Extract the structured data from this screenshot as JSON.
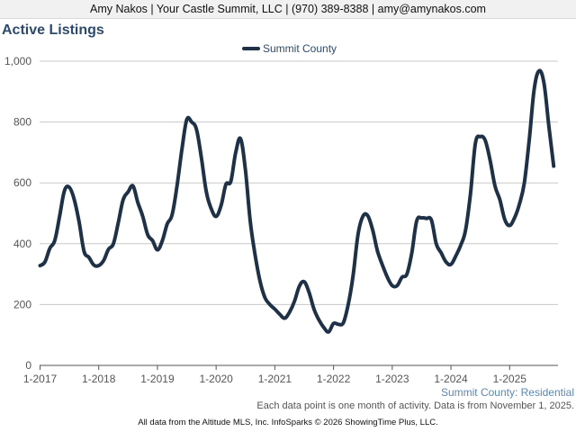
{
  "header": {
    "contact": "Amy Nakos | Your Castle Summit, LLC | (970) 389-8388 | amy@amynakos.com"
  },
  "chart_data": {
    "type": "line",
    "title": "Active Listings",
    "xlabel": "",
    "ylabel": "",
    "ylim": [
      0,
      1000
    ],
    "y_ticks": [
      0,
      200,
      400,
      600,
      800,
      1000
    ],
    "y_tick_labels": [
      "0",
      "200",
      "400",
      "600",
      "800",
      "1,000"
    ],
    "x_tick_labels": [
      "1-2017",
      "1-2018",
      "1-2019",
      "1-2020",
      "1-2021",
      "1-2022",
      "1-2023",
      "1-2024",
      "1-2025"
    ],
    "grid": true,
    "legend_position": "top-center",
    "series": [
      {
        "name": "Summit County",
        "color": "#1f3147",
        "start": "1-2017",
        "values": [
          328,
          340,
          385,
          410,
          490,
          575,
          585,
          545,
          470,
          375,
          355,
          330,
          328,
          345,
          382,
          400,
          470,
          545,
          570,
          590,
          535,
          490,
          430,
          410,
          380,
          410,
          465,
          495,
          590,
          710,
          808,
          800,
          775,
          680,
          570,
          515,
          490,
          525,
          595,
          605,
          700,
          745,
          640,
          470,
          360,
          275,
          222,
          200,
          185,
          168,
          155,
          175,
          210,
          260,
          275,
          240,
          185,
          150,
          125,
          110,
          138,
          135,
          140,
          200,
          295,
          430,
          490,
          492,
          445,
          375,
          330,
          290,
          262,
          262,
          290,
          300,
          370,
          475,
          485,
          483,
          478,
          400,
          370,
          340,
          332,
          360,
          395,
          445,
          565,
          730,
          752,
          740,
          675,
          590,
          545,
          480,
          460,
          485,
          530,
          600,
          740,
          905,
          968,
          930,
          790,
          655
        ]
      }
    ]
  },
  "footer": {
    "source_label": "Summit County: Residential",
    "note": "Each data point is one month of activity. Data is from November 1, 2025.",
    "credit": "All data from the Altitude MLS, Inc. InfoSparks © 2026 ShowingTime Plus, LLC."
  }
}
